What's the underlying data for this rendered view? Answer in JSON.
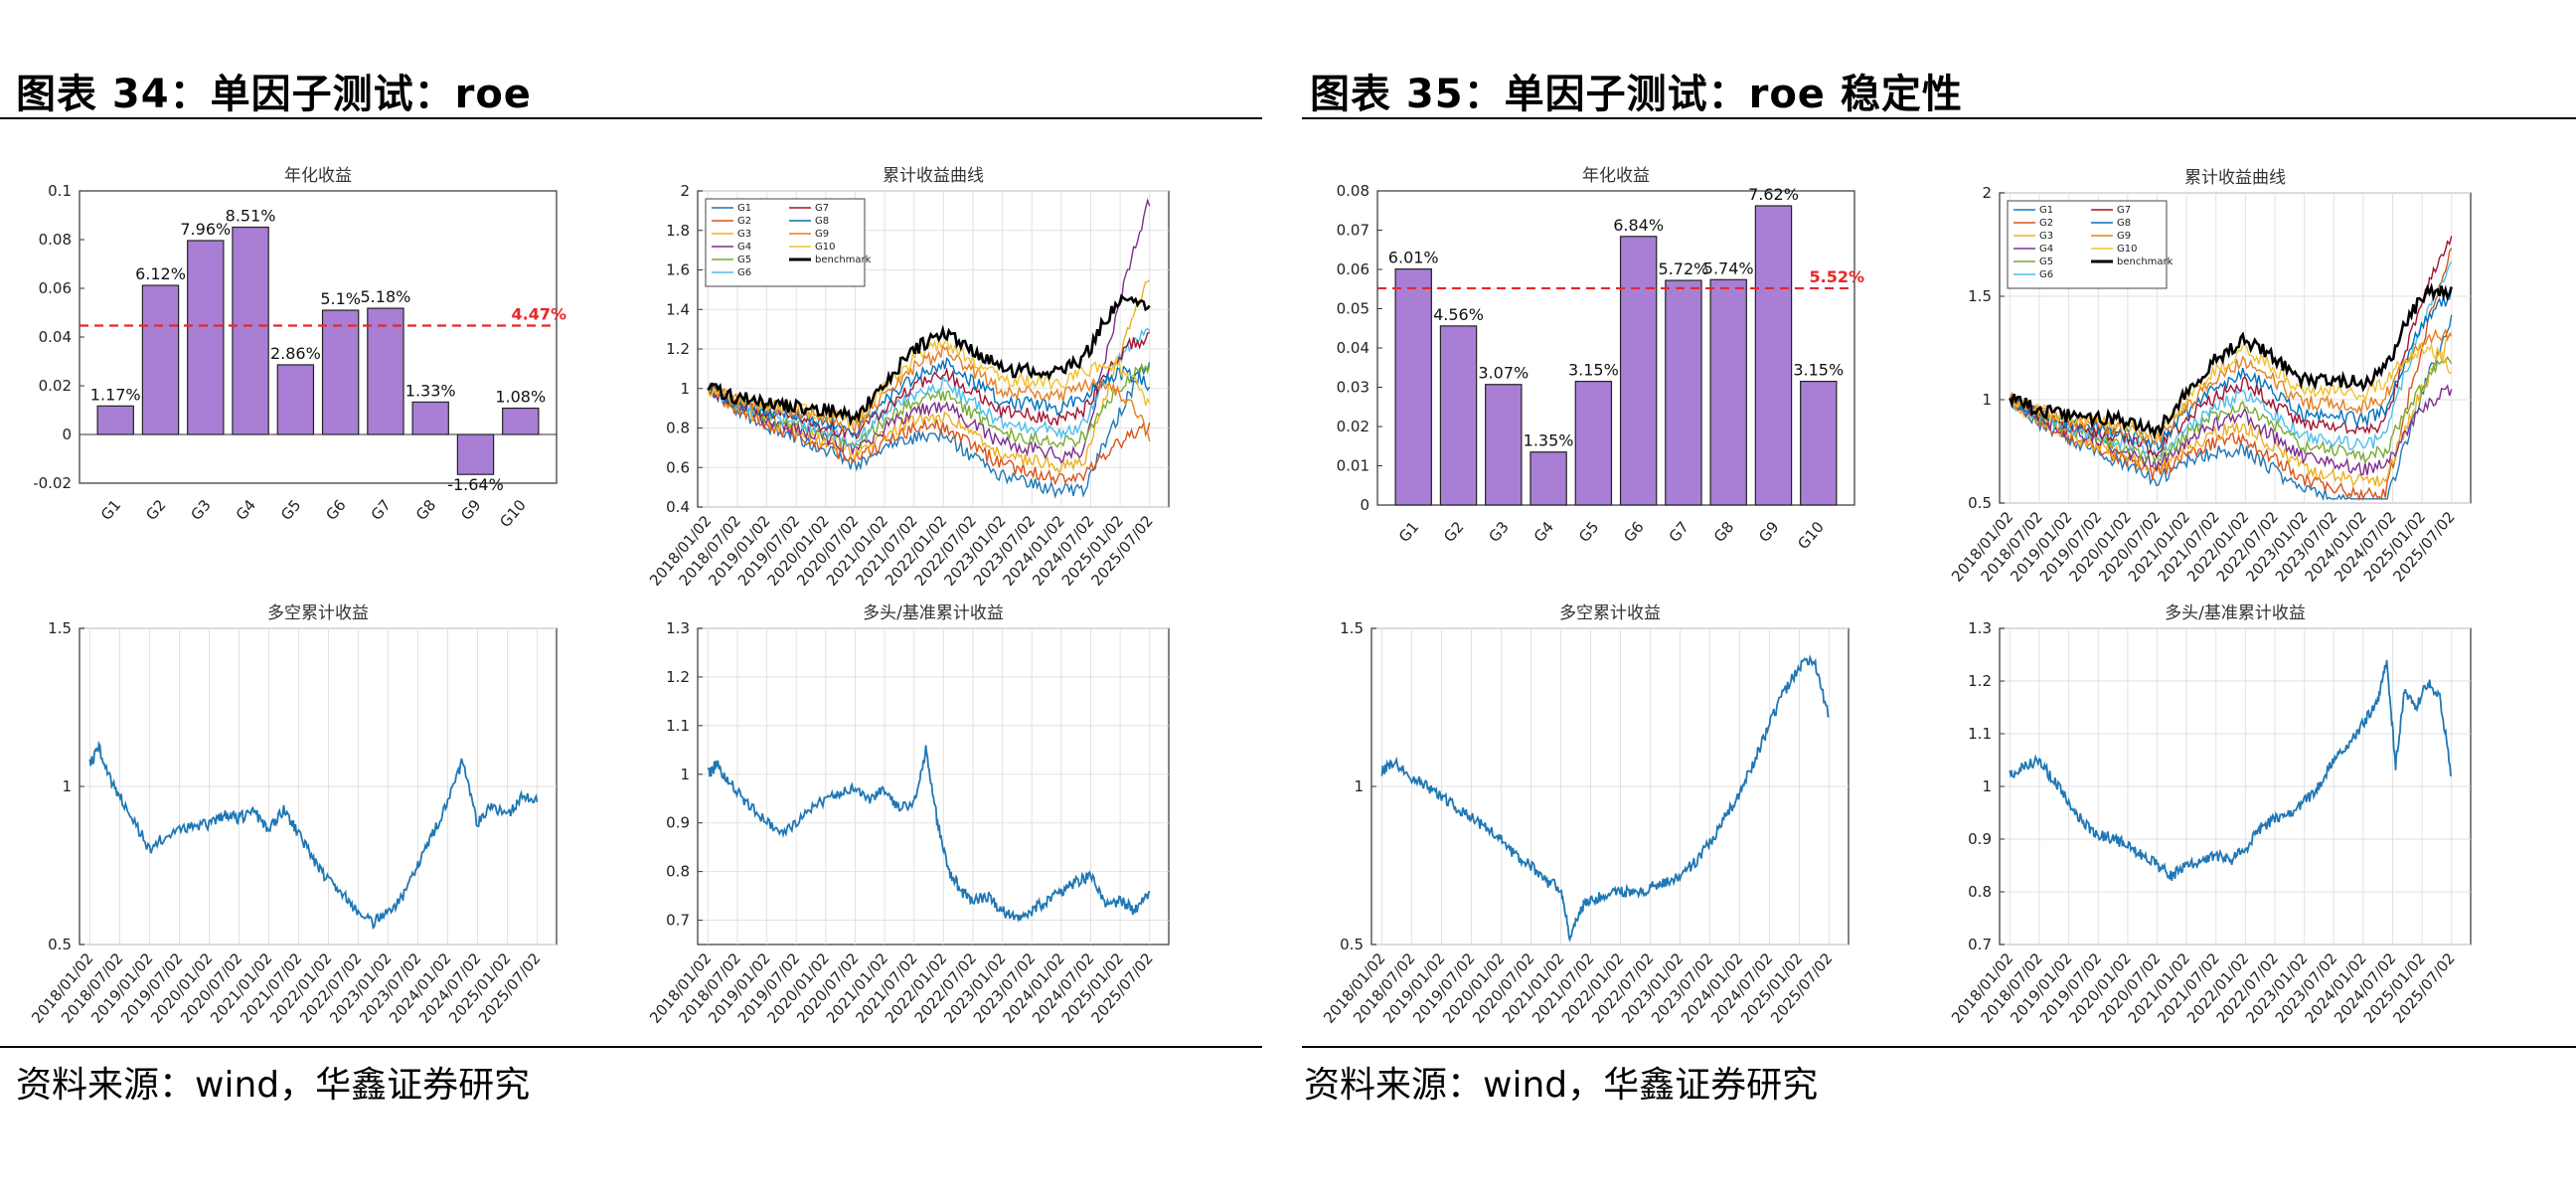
{
  "left": {
    "title": "图表 34：单因子测试：roe",
    "source": "资料来源：wind，华鑫证券研究"
  },
  "right": {
    "title": "图表 35：单因子测试：roe 稳定性",
    "source": "资料来源：wind，华鑫证券研究"
  },
  "colors": {
    "bar": "#a87fd4",
    "refline": "#e8262a",
    "line": "#1f77b4",
    "benchmark": "#000000",
    "groups": [
      "#1f77b4",
      "#d95319",
      "#edb120",
      "#7e2f8e",
      "#77ac30",
      "#4dbeee",
      "#a2142f",
      "#0072bd",
      "#e67e22",
      "#f2c12e"
    ]
  },
  "chart_data": [
    {
      "id": "p1",
      "type": "bar",
      "title": "年化收益",
      "categories": [
        "G1",
        "G2",
        "G3",
        "G4",
        "G5",
        "G6",
        "G7",
        "G8",
        "G9",
        "G10"
      ],
      "values": [
        0.0117,
        0.0612,
        0.0796,
        0.0851,
        0.0286,
        0.051,
        0.0518,
        0.0133,
        -0.0164,
        0.0108
      ],
      "data_labels": [
        "1.17%",
        "6.12%",
        "7.96%",
        "8.51%",
        "2.86%",
        "5.1%",
        "5.18%",
        "1.33%",
        "-1.64%",
        "1.08%"
      ],
      "reference_value": 0.0447,
      "reference_label": "4.47%",
      "ylim": [
        -0.02,
        0.1
      ],
      "yticks": [
        -0.02,
        0,
        0.02,
        0.04,
        0.06,
        0.08,
        0.1
      ],
      "ytick_labels": [
        "-0.02",
        "0",
        "0.02",
        "0.04",
        "0.06",
        "0.08",
        "0.1"
      ]
    },
    {
      "id": "p2",
      "type": "line",
      "title": "累计收益曲线",
      "x_labels": [
        "2018/01/02",
        "2018/07/02",
        "2019/01/02",
        "2019/07/02",
        "2020/01/02",
        "2020/07/02",
        "2021/01/02",
        "2021/07/02",
        "2022/01/02",
        "2022/07/02",
        "2023/01/02",
        "2023/07/02",
        "2024/01/02",
        "2024/07/02",
        "2025/01/02",
        "2025/07/02"
      ],
      "ylim": [
        0.4,
        2
      ],
      "yticks": [
        0.4,
        0.6,
        0.8,
        1,
        1.2,
        1.4,
        1.6,
        1.8,
        2
      ],
      "ytick_labels": [
        "0.4",
        "0.6",
        "0.8",
        "1",
        "1.2",
        "1.4",
        "1.6",
        "1.8",
        "2"
      ],
      "legend": [
        "G1",
        "G2",
        "G3",
        "G4",
        "G5",
        "G6",
        "G7",
        "G8",
        "G9",
        "G10",
        "benchmark"
      ],
      "end_values": [
        1.15,
        0.8,
        1.55,
        1.95,
        1.1,
        1.3,
        1.25,
        1.0,
        0.75,
        0.9
      ],
      "benchmark_end": 1.42,
      "series_seed": 11
    },
    {
      "id": "p3",
      "type": "line",
      "title": "多空累计收益",
      "x_labels": [
        "2018/01/02",
        "2018/07/02",
        "2019/01/02",
        "2019/07/02",
        "2020/01/02",
        "2020/07/02",
        "2021/01/02",
        "2021/07/02",
        "2022/01/02",
        "2022/07/02",
        "2023/01/02",
        "2023/07/02",
        "2024/01/02",
        "2024/07/02",
        "2025/01/02",
        "2025/07/02"
      ],
      "ylim": [
        0.5,
        1.5
      ],
      "yticks": [
        0.5,
        1,
        1.5
      ],
      "ytick_labels": [
        "0.5",
        "1",
        "1.5"
      ],
      "x": [
        0,
        0.3,
        0.8,
        1.3,
        2,
        2.6,
        3.3,
        4,
        4.5,
        5,
        5.5,
        6,
        6.5,
        7,
        7.5,
        8,
        8.5,
        9,
        9.5,
        10,
        10.5,
        11,
        11.5,
        12,
        12.5,
        13,
        13.5,
        14,
        14.5,
        15
      ],
      "values": [
        1.07,
        1.12,
        1.0,
        0.92,
        0.8,
        0.85,
        0.87,
        0.88,
        0.91,
        0.9,
        0.92,
        0.86,
        0.93,
        0.85,
        0.77,
        0.7,
        0.66,
        0.6,
        0.57,
        0.6,
        0.65,
        0.75,
        0.85,
        0.95,
        1.08,
        0.88,
        0.94,
        0.91,
        0.97,
        0.95
      ]
    },
    {
      "id": "p4",
      "type": "line",
      "title": "多头/基准累计收益",
      "x_labels": [
        "2018/01/02",
        "2018/07/02",
        "2019/01/02",
        "2019/07/02",
        "2020/01/02",
        "2020/07/02",
        "2021/01/02",
        "2021/07/02",
        "2022/01/02",
        "2022/07/02",
        "2023/01/02",
        "2023/07/02",
        "2024/01/02",
        "2024/07/02",
        "2025/01/02",
        "2025/07/02"
      ],
      "ylim": [
        0.65,
        1.3
      ],
      "yticks": [
        0.7,
        0.8,
        0.9,
        1,
        1.1,
        1.2,
        1.3
      ],
      "ytick_labels": [
        "0.7",
        "0.8",
        "0.9",
        "1",
        "1.1",
        "1.2",
        "1.3"
      ],
      "x": [
        0,
        0.3,
        0.8,
        1.3,
        2,
        2.6,
        3.3,
        4,
        4.5,
        5,
        5.5,
        6,
        6.5,
        7,
        7.4,
        7.8,
        8.2,
        8.6,
        9,
        9.5,
        10,
        10.5,
        11,
        11.5,
        12,
        12.5,
        13,
        13.5,
        14,
        14.5,
        15
      ],
      "values": [
        1.0,
        1.02,
        0.98,
        0.94,
        0.9,
        0.88,
        0.92,
        0.95,
        0.96,
        0.97,
        0.95,
        0.97,
        0.93,
        0.94,
        1.05,
        0.9,
        0.8,
        0.76,
        0.74,
        0.75,
        0.72,
        0.7,
        0.72,
        0.74,
        0.76,
        0.78,
        0.79,
        0.73,
        0.74,
        0.72,
        0.76
      ]
    },
    {
      "id": "p5",
      "type": "bar",
      "title": "年化收益",
      "categories": [
        "G1",
        "G2",
        "G3",
        "G4",
        "G5",
        "G6",
        "G7",
        "G8",
        "G9",
        "G10"
      ],
      "values": [
        0.0601,
        0.0456,
        0.0307,
        0.0135,
        0.0315,
        0.0684,
        0.0572,
        0.0574,
        0.0762,
        0.0315
      ],
      "data_labels": [
        "6.01%",
        "4.56%",
        "3.07%",
        "1.35%",
        "3.15%",
        "6.84%",
        "5.72%",
        "5.74%",
        "7.62%",
        "3.15%"
      ],
      "reference_value": 0.0552,
      "reference_label": "5.52%",
      "ylim": [
        0,
        0.08
      ],
      "yticks": [
        0,
        0.01,
        0.02,
        0.03,
        0.04,
        0.05,
        0.06,
        0.07,
        0.08
      ],
      "ytick_labels": [
        "0",
        "0.01",
        "0.02",
        "0.03",
        "0.04",
        "0.05",
        "0.06",
        "0.07",
        "0.08"
      ]
    },
    {
      "id": "p6",
      "type": "line",
      "title": "累计收益曲线",
      "x_labels": [
        "2018/01/02",
        "2018/07/02",
        "2019/01/02",
        "2019/07/02",
        "2020/01/02",
        "2020/07/02",
        "2021/01/02",
        "2021/07/02",
        "2022/01/02",
        "2022/07/02",
        "2023/01/02",
        "2023/07/02",
        "2024/01/02",
        "2024/07/02",
        "2025/01/02",
        "2025/07/02"
      ],
      "ylim": [
        0.5,
        2
      ],
      "yticks": [
        0.5,
        1,
        1.5,
        2
      ],
      "ytick_labels": [
        "0.5",
        "1",
        "1.5",
        "2"
      ],
      "legend": [
        "G1",
        "G2",
        "G3",
        "G4",
        "G5",
        "G6",
        "G7",
        "G8",
        "G9",
        "G10",
        "benchmark"
      ],
      "end_values": [
        1.4,
        1.75,
        1.3,
        1.05,
        1.2,
        1.65,
        1.8,
        1.5,
        1.3,
        1.15
      ],
      "benchmark_end": 1.52,
      "series_seed": 29
    },
    {
      "id": "p7",
      "type": "line",
      "title": "多空累计收益",
      "x_labels": [
        "2018/01/02",
        "2018/07/02",
        "2019/01/02",
        "2019/07/02",
        "2020/01/02",
        "2020/07/02",
        "2021/01/02",
        "2021/07/02",
        "2022/01/02",
        "2022/07/02",
        "2023/01/02",
        "2023/07/02",
        "2024/01/02",
        "2024/07/02",
        "2025/01/02",
        "2025/07/02"
      ],
      "ylim": [
        0.5,
        1.5
      ],
      "yticks": [
        0.5,
        1,
        1.5
      ],
      "ytick_labels": [
        "0.5",
        "1",
        "1.5"
      ],
      "x": [
        0,
        0.4,
        1,
        1.5,
        2,
        2.5,
        3,
        3.5,
        4,
        4.5,
        5,
        5.5,
        6,
        6.3,
        6.7,
        7,
        7.5,
        8,
        8.5,
        9,
        9.5,
        10,
        10.5,
        11,
        11.5,
        12,
        12.5,
        13,
        13.5,
        14,
        14.5,
        15
      ],
      "values": [
        1.05,
        1.08,
        1.03,
        1.0,
        0.97,
        0.93,
        0.9,
        0.87,
        0.83,
        0.78,
        0.75,
        0.7,
        0.68,
        0.52,
        0.62,
        0.64,
        0.66,
        0.67,
        0.66,
        0.68,
        0.7,
        0.72,
        0.76,
        0.82,
        0.9,
        0.98,
        1.08,
        1.2,
        1.3,
        1.38,
        1.4,
        1.22
      ]
    },
    {
      "id": "p8",
      "type": "line",
      "title": "多头/基准累计收益",
      "x_labels": [
        "2018/01/02",
        "2018/07/02",
        "2019/01/02",
        "2019/07/02",
        "2020/01/02",
        "2020/07/02",
        "2021/01/02",
        "2021/07/02",
        "2022/01/02",
        "2022/07/02",
        "2023/01/02",
        "2023/07/02",
        "2024/01/02",
        "2024/07/02",
        "2025/01/02",
        "2025/07/02"
      ],
      "ylim": [
        0.7,
        1.3
      ],
      "yticks": [
        0.7,
        0.8,
        0.9,
        1,
        1.1,
        1.2,
        1.3
      ],
      "ytick_labels": [
        "0.7",
        "0.8",
        "0.9",
        "1",
        "1.1",
        "1.2",
        "1.3"
      ],
      "x": [
        0,
        0.4,
        1,
        1.5,
        2,
        2.5,
        3,
        3.5,
        4,
        4.5,
        5,
        5.5,
        6,
        6.5,
        7,
        7.5,
        8,
        8.5,
        9,
        9.5,
        10,
        10.5,
        11,
        11.5,
        12,
        12.5,
        12.8,
        13.1,
        13.4,
        13.8,
        14.2,
        14.6,
        15
      ],
      "values": [
        1.02,
        1.04,
        1.05,
        1.01,
        0.97,
        0.93,
        0.91,
        0.9,
        0.89,
        0.87,
        0.85,
        0.83,
        0.85,
        0.86,
        0.87,
        0.86,
        0.88,
        0.92,
        0.94,
        0.95,
        0.97,
        1.0,
        1.05,
        1.08,
        1.12,
        1.16,
        1.24,
        1.04,
        1.18,
        1.15,
        1.2,
        1.17,
        1.02
      ]
    }
  ]
}
